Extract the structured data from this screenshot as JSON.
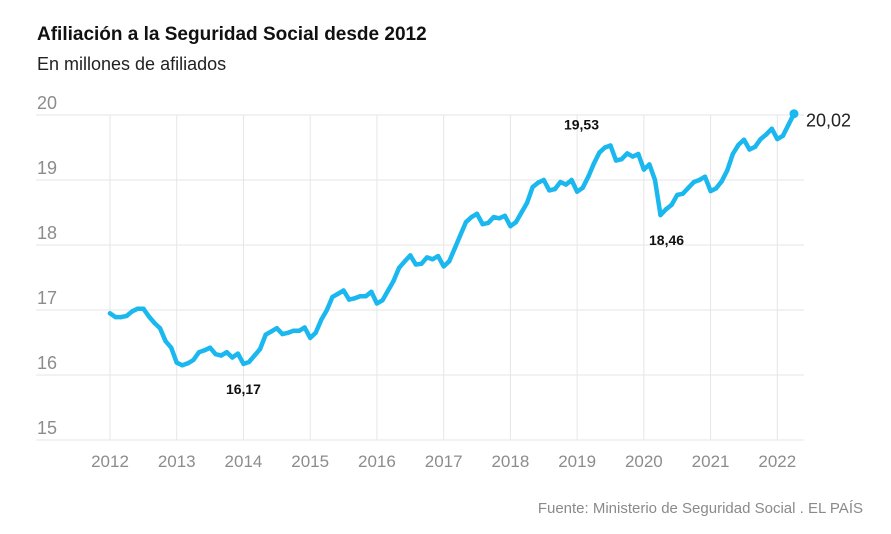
{
  "header": {
    "title": "Afiliación a la Seguridad Social desde 2012",
    "subtitle": "En millones de afiliados"
  },
  "footer": {
    "source": "Fuente: Ministerio de Seguridad Social . EL PAÍS"
  },
  "colors": {
    "line": "#1ab8ef",
    "grid": "#e6e6e6",
    "axis_text": "#8c8c8c"
  },
  "chart_data": {
    "type": "line",
    "title": "Afiliación a la Seguridad Social desde 2012",
    "subtitle": "En millones de afiliados",
    "xlabel": "",
    "ylabel": "",
    "xlim": [
      2012,
      2022.25
    ],
    "ylim": [
      15,
      20
    ],
    "x_ticks": [
      "2012",
      "2013",
      "2014",
      "2015",
      "2016",
      "2017",
      "2018",
      "2019",
      "2020",
      "2021",
      "2022"
    ],
    "y_ticks": [
      "20",
      "19",
      "18",
      "17",
      "16",
      "15"
    ],
    "grid": true,
    "series": [
      {
        "name": "Afiliados",
        "x": [
          2012.0,
          2012.083,
          2012.167,
          2012.25,
          2012.333,
          2012.417,
          2012.5,
          2012.583,
          2012.667,
          2012.75,
          2012.833,
          2012.917,
          2013.0,
          2013.083,
          2013.167,
          2013.25,
          2013.333,
          2013.417,
          2013.5,
          2013.583,
          2013.667,
          2013.75,
          2013.833,
          2013.917,
          2014.0,
          2014.083,
          2014.167,
          2014.25,
          2014.333,
          2014.417,
          2014.5,
          2014.583,
          2014.667,
          2014.75,
          2014.833,
          2014.917,
          2015.0,
          2015.083,
          2015.167,
          2015.25,
          2015.333,
          2015.417,
          2015.5,
          2015.583,
          2015.667,
          2015.75,
          2015.833,
          2015.917,
          2016.0,
          2016.083,
          2016.167,
          2016.25,
          2016.333,
          2016.417,
          2016.5,
          2016.583,
          2016.667,
          2016.75,
          2016.833,
          2016.917,
          2017.0,
          2017.083,
          2017.167,
          2017.25,
          2017.333,
          2017.417,
          2017.5,
          2017.583,
          2017.667,
          2017.75,
          2017.833,
          2017.917,
          2018.0,
          2018.083,
          2018.167,
          2018.25,
          2018.333,
          2018.417,
          2018.5,
          2018.583,
          2018.667,
          2018.75,
          2018.833,
          2018.917,
          2019.0,
          2019.083,
          2019.167,
          2019.25,
          2019.333,
          2019.417,
          2019.5,
          2019.583,
          2019.667,
          2019.75,
          2019.833,
          2019.917,
          2020.0,
          2020.083,
          2020.167,
          2020.25,
          2020.333,
          2020.417,
          2020.5,
          2020.583,
          2020.667,
          2020.75,
          2020.833,
          2020.917,
          2021.0,
          2021.083,
          2021.167,
          2021.25,
          2021.333,
          2021.417,
          2021.5,
          2021.583,
          2021.667,
          2021.75,
          2021.833,
          2021.917,
          2022.0,
          2022.083,
          2022.167,
          2022.25
        ],
        "values": [
          16.95,
          16.89,
          16.89,
          16.91,
          16.98,
          17.02,
          17.02,
          16.9,
          16.8,
          16.72,
          16.52,
          16.42,
          16.19,
          16.15,
          16.18,
          16.23,
          16.35,
          16.38,
          16.42,
          16.32,
          16.3,
          16.35,
          16.27,
          16.33,
          16.17,
          16.2,
          16.3,
          16.4,
          16.62,
          16.67,
          16.72,
          16.63,
          16.65,
          16.68,
          16.68,
          16.73,
          16.57,
          16.65,
          16.85,
          17.0,
          17.2,
          17.25,
          17.3,
          17.16,
          17.18,
          17.21,
          17.21,
          17.28,
          17.1,
          17.15,
          17.3,
          17.45,
          17.65,
          17.75,
          17.84,
          17.7,
          17.71,
          17.81,
          17.78,
          17.83,
          17.67,
          17.75,
          17.95,
          18.15,
          18.35,
          18.43,
          18.48,
          18.32,
          18.34,
          18.43,
          18.41,
          18.45,
          18.29,
          18.35,
          18.5,
          18.65,
          18.89,
          18.96,
          19.0,
          18.84,
          18.86,
          18.97,
          18.93,
          19.0,
          18.82,
          18.88,
          19.05,
          19.25,
          19.42,
          19.5,
          19.53,
          19.3,
          19.32,
          19.41,
          19.36,
          19.4,
          19.16,
          19.24,
          19.0,
          18.46,
          18.55,
          18.62,
          18.77,
          18.79,
          18.88,
          18.97,
          19.0,
          19.05,
          18.83,
          18.87,
          18.98,
          19.15,
          19.4,
          19.54,
          19.62,
          19.47,
          19.51,
          19.63,
          19.7,
          19.79,
          19.63,
          19.68,
          19.85,
          20.02
        ]
      }
    ],
    "annotations": [
      {
        "label": "16,17",
        "x": 2014.0,
        "value": 16.17,
        "position": "below"
      },
      {
        "label": "19,53",
        "x": 2019.5,
        "value": 19.53,
        "position": "above"
      },
      {
        "label": "18,46",
        "x": 2020.25,
        "value": 18.46,
        "position": "below"
      },
      {
        "label": "20,02",
        "x": 2022.25,
        "value": 20.02,
        "position": "right"
      }
    ]
  }
}
